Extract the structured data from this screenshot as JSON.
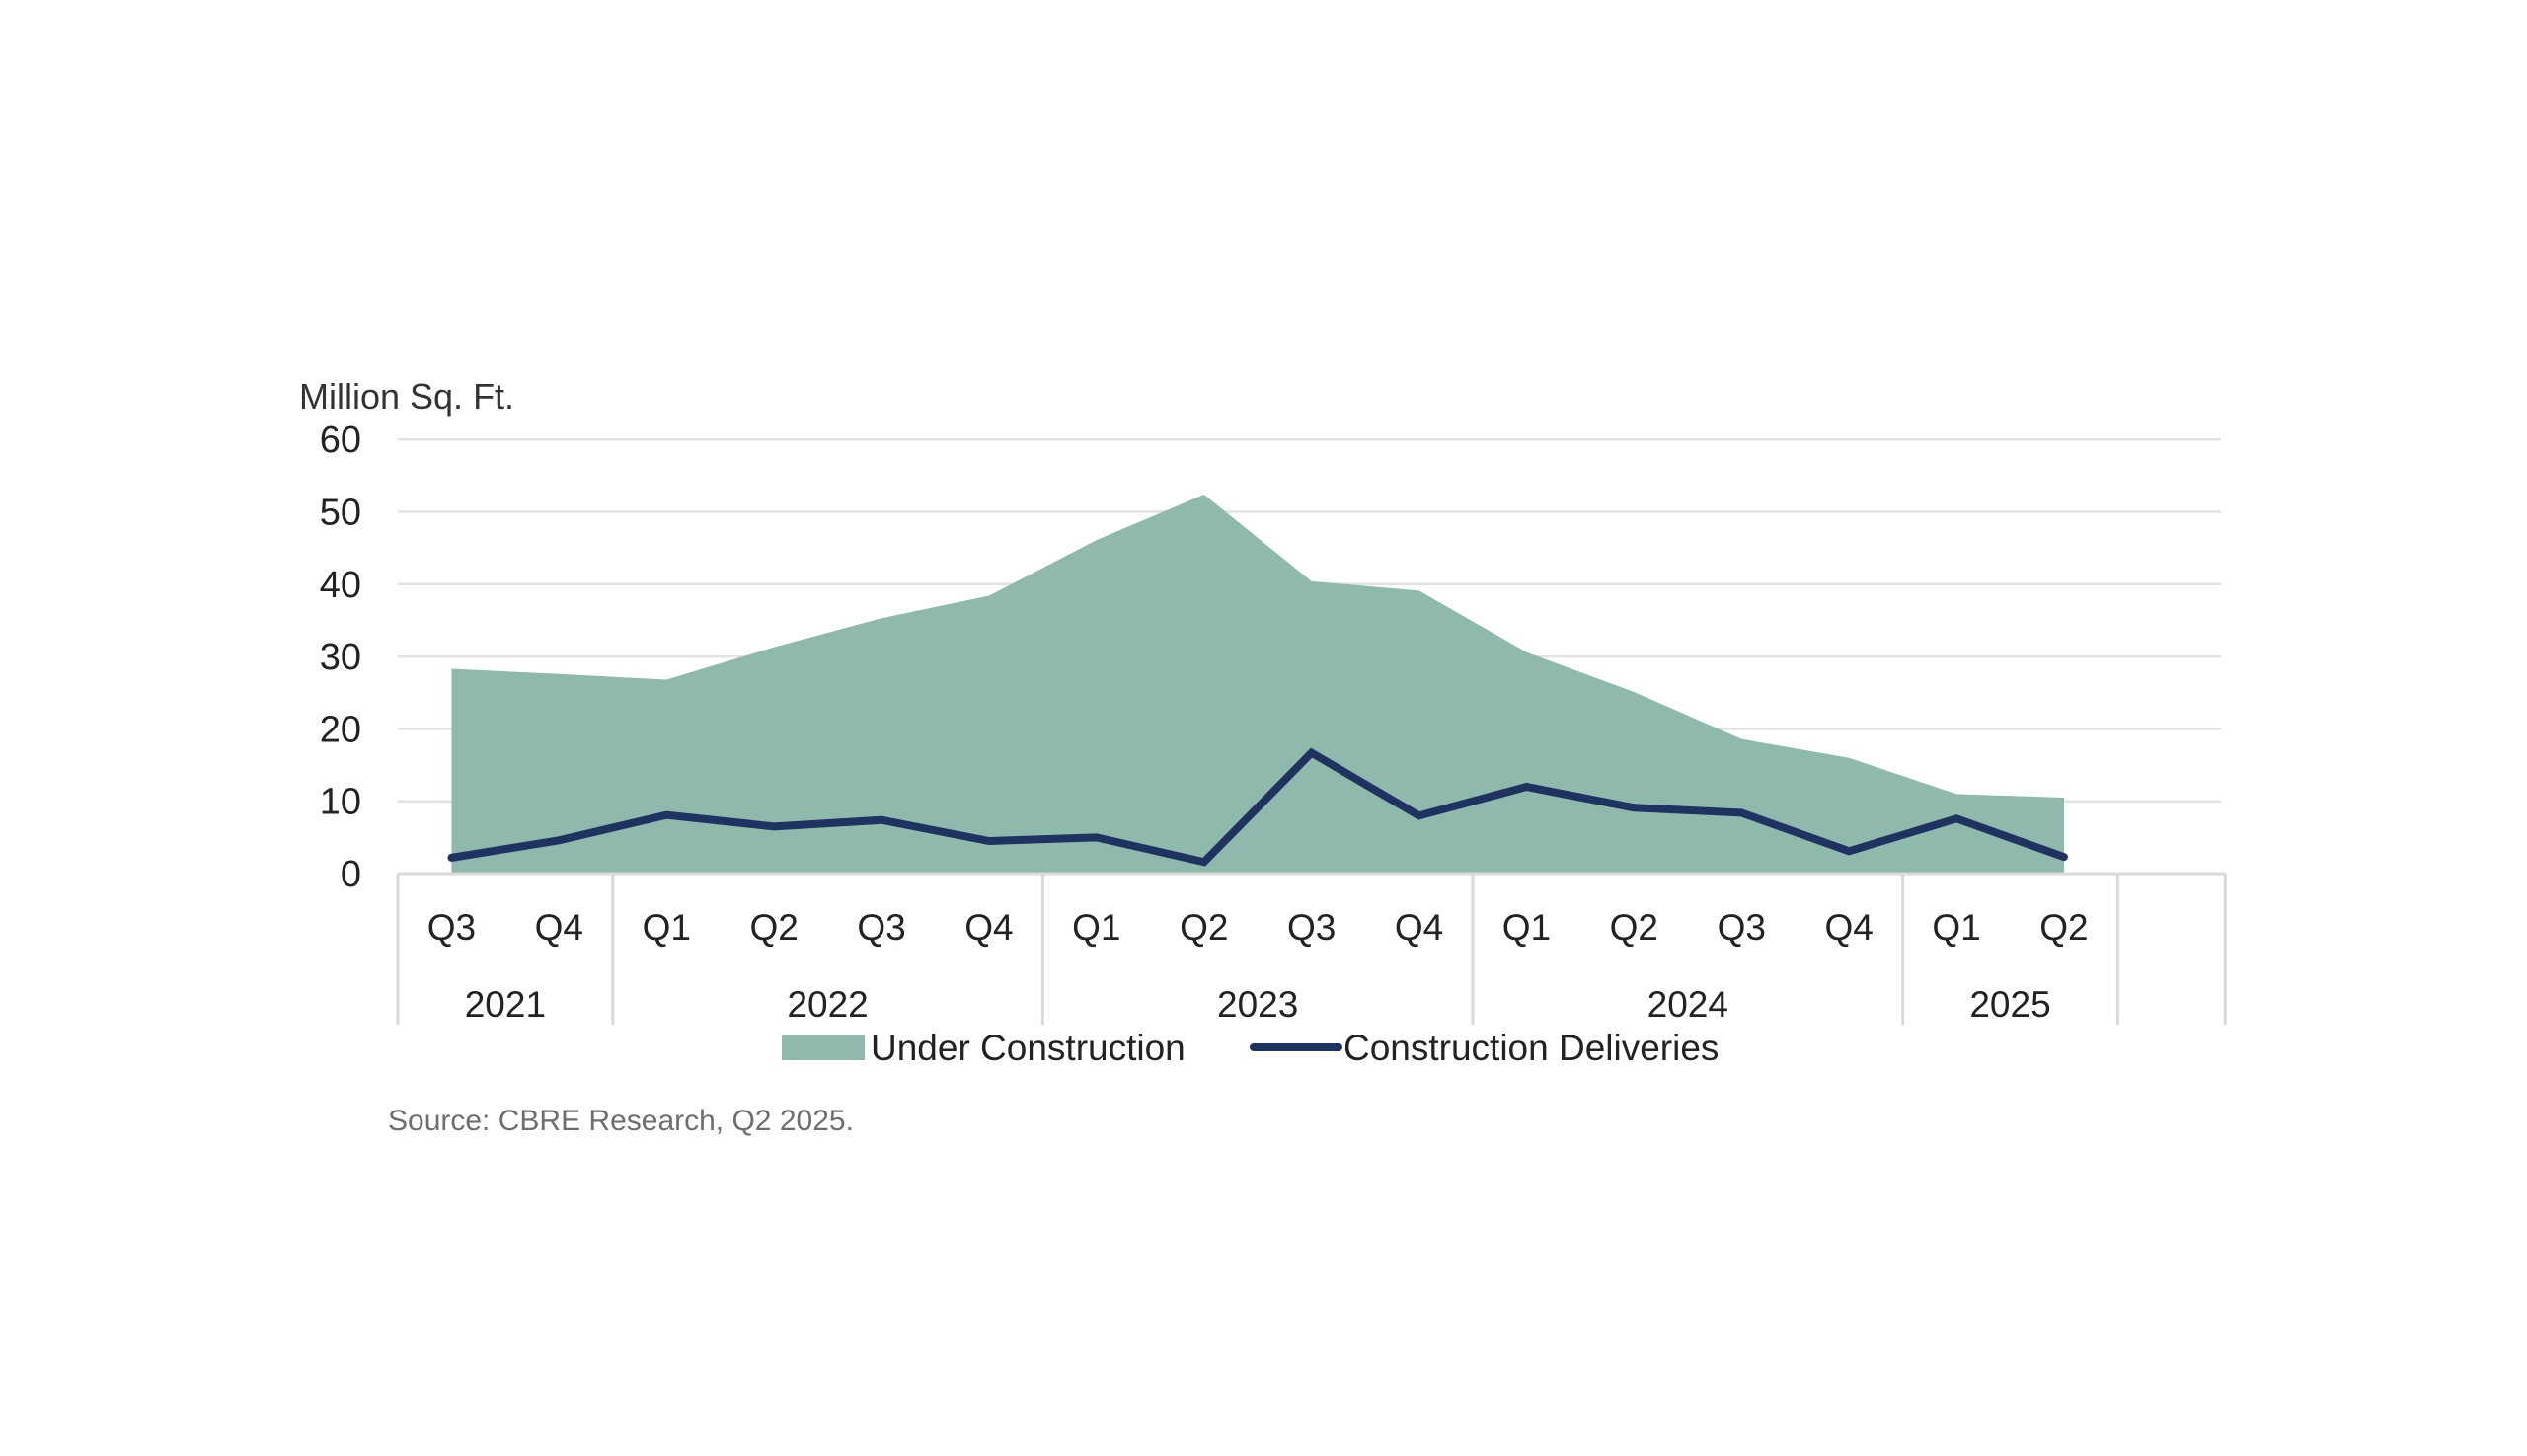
{
  "chart_data": {
    "type": "area",
    "ylabel": "Million Sq. Ft.",
    "ylim": [
      0,
      60
    ],
    "yticks": [
      0,
      10,
      20,
      30,
      40,
      50,
      60
    ],
    "grid": true,
    "legend_position": "bottom",
    "categories": [
      "Q3",
      "Q4",
      "Q1",
      "Q2",
      "Q3",
      "Q4",
      "Q1",
      "Q2",
      "Q3",
      "Q4",
      "Q1",
      "Q2",
      "Q3",
      "Q4",
      "Q1",
      "Q2"
    ],
    "year_groups": [
      {
        "label": "2021",
        "count": 2
      },
      {
        "label": "2022",
        "count": 4
      },
      {
        "label": "2023",
        "count": 4
      },
      {
        "label": "2024",
        "count": 4
      },
      {
        "label": "2025",
        "count": 2
      }
    ],
    "series": [
      {
        "name": "Under Construction",
        "type": "area",
        "color": "#8fb9ad",
        "values": [
          28.3,
          27.6,
          26.8,
          31.3,
          35.3,
          38.4,
          46.1,
          52.4,
          40.4,
          39.1,
          30.6,
          25.1,
          18.6,
          16.0,
          11.0,
          10.5
        ]
      },
      {
        "name": "Construction Deliveries",
        "type": "line",
        "color": "#1f3360",
        "values": [
          2.2,
          4.6,
          8.1,
          6.5,
          7.4,
          4.5,
          5.0,
          1.6,
          16.7,
          8.0,
          12.0,
          9.1,
          8.4,
          3.1,
          7.6,
          2.3
        ]
      }
    ],
    "source": "Source: CBRE Research, Q2 2025."
  }
}
